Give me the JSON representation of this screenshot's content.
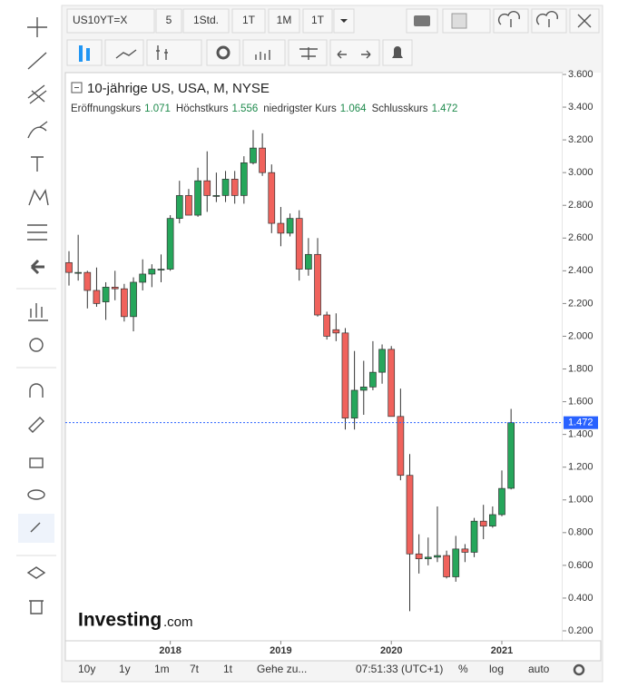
{
  "toolbar": {
    "symbol": "US10YT=X",
    "buttons": [
      "5",
      "1Std.",
      "1T",
      "1M",
      "1T"
    ]
  },
  "bottom_bar": {
    "ranges": [
      "10y",
      "1y",
      "1m",
      "7t",
      "1t"
    ],
    "goto": "Gehe zu...",
    "time": "07:51:33 (UTC+1)",
    "options": [
      "%",
      "log",
      "auto"
    ]
  },
  "watermark": {
    "brand": "Investing",
    "suffix": ".com"
  },
  "chart_data": {
    "type": "candlestick",
    "title": "10-jährige US, USA, M, NYSE",
    "ohlc_legend": [
      {
        "label": "Eröffnungskurs",
        "value": "1.071"
      },
      {
        "label": "Höchstkurs",
        "value": "1.556"
      },
      {
        "label": "niedrigster Kurs",
        "value": "1.064"
      },
      {
        "label": "Schlusskurs",
        "value": "1.472"
      }
    ],
    "categories": [
      null,
      null,
      null,
      null,
      null,
      null,
      null,
      null,
      null,
      null,
      null,
      "2018",
      null,
      null,
      null,
      null,
      null,
      null,
      null,
      null,
      null,
      null,
      null,
      "2019",
      null,
      null,
      null,
      null,
      null,
      null,
      null,
      null,
      null,
      null,
      null,
      "2020",
      null,
      null,
      null,
      null,
      null,
      null,
      null,
      null,
      null,
      null,
      null,
      "2021",
      null
    ],
    "open": [
      2.45,
      2.39,
      2.39,
      2.28,
      2.21,
      2.3,
      2.29,
      2.12,
      2.33,
      2.38,
      2.41,
      2.41,
      2.72,
      2.86,
      2.74,
      2.95,
      2.86,
      2.86,
      2.96,
      2.86,
      3.06,
      3.15,
      3.0,
      2.69,
      2.63,
      2.72,
      2.41,
      2.5,
      2.13,
      2.04,
      2.02,
      1.5,
      1.67,
      1.69,
      1.78,
      1.92,
      1.51,
      1.15,
      0.67,
      0.64,
      0.65,
      0.66,
      0.53,
      0.7,
      0.68,
      0.87,
      0.84,
      0.91,
      1.071
    ],
    "high": [
      2.52,
      2.62,
      2.4,
      2.42,
      2.33,
      2.4,
      2.32,
      2.36,
      2.47,
      2.44,
      2.5,
      2.74,
      2.95,
      2.9,
      3.03,
      3.13,
      3.0,
      3.01,
      3.01,
      3.1,
      3.26,
      3.24,
      3.05,
      2.79,
      2.75,
      2.77,
      2.6,
      2.6,
      2.15,
      2.14,
      2.05,
      1.91,
      1.85,
      1.97,
      1.95,
      1.94,
      1.68,
      1.28,
      0.79,
      0.77,
      0.96,
      0.69,
      0.78,
      0.73,
      0.89,
      0.97,
      0.96,
      1.18,
      1.556
    ],
    "low": [
      2.31,
      2.34,
      2.17,
      2.18,
      2.1,
      2.22,
      2.09,
      2.03,
      2.28,
      2.3,
      2.33,
      2.4,
      2.69,
      2.74,
      2.73,
      2.76,
      2.82,
      2.82,
      2.81,
      2.81,
      3.05,
      2.98,
      2.63,
      2.55,
      2.61,
      2.34,
      2.37,
      2.12,
      1.98,
      1.97,
      1.43,
      1.43,
      1.52,
      1.67,
      1.71,
      1.51,
      1.12,
      0.32,
      0.55,
      0.6,
      0.62,
      0.52,
      0.5,
      0.62,
      0.65,
      0.76,
      0.83,
      0.9,
      1.064
    ],
    "close": [
      2.39,
      2.39,
      2.28,
      2.2,
      2.3,
      2.29,
      2.12,
      2.33,
      2.38,
      2.41,
      2.41,
      2.72,
      2.86,
      2.74,
      2.95,
      2.86,
      2.86,
      2.96,
      2.86,
      3.06,
      3.15,
      3.0,
      2.69,
      2.63,
      2.72,
      2.41,
      2.5,
      2.13,
      2.0,
      2.02,
      1.5,
      1.67,
      1.69,
      1.78,
      1.92,
      1.51,
      1.15,
      0.67,
      0.64,
      0.65,
      0.66,
      0.53,
      0.7,
      0.68,
      0.87,
      0.84,
      0.91,
      1.07,
      1.472
    ],
    "last_close_label": "1.472",
    "up_color": "#26a65b",
    "down_color": "#f0625c",
    "price_line_color": "#2962ff",
    "ylim": [
      0.139,
      3.611
    ],
    "yticks": [
      {
        "value": 3.6,
        "label": "3.600"
      },
      {
        "value": 3.4,
        "label": "3.400"
      },
      {
        "value": 3.2,
        "label": "3.200"
      },
      {
        "value": 3.0,
        "label": "3.000"
      },
      {
        "value": 2.8,
        "label": "2.800"
      },
      {
        "value": 2.6,
        "label": "2.600"
      },
      {
        "value": 2.4,
        "label": "2.400"
      },
      {
        "value": 2.2,
        "label": "2.200"
      },
      {
        "value": 2.0,
        "label": "2.000"
      },
      {
        "value": 1.8,
        "label": "1.800"
      },
      {
        "value": 1.6,
        "label": "1.600"
      },
      {
        "value": 1.4,
        "label": "1.400"
      },
      {
        "value": 1.2,
        "label": "1.200"
      },
      {
        "value": 1.0,
        "label": "1.000"
      },
      {
        "value": 0.8,
        "label": "0.800"
      },
      {
        "value": 0.6,
        "label": "0.600"
      },
      {
        "value": 0.4,
        "label": "0.400"
      },
      {
        "value": 0.2,
        "label": "0.200"
      }
    ],
    "grid": false
  }
}
